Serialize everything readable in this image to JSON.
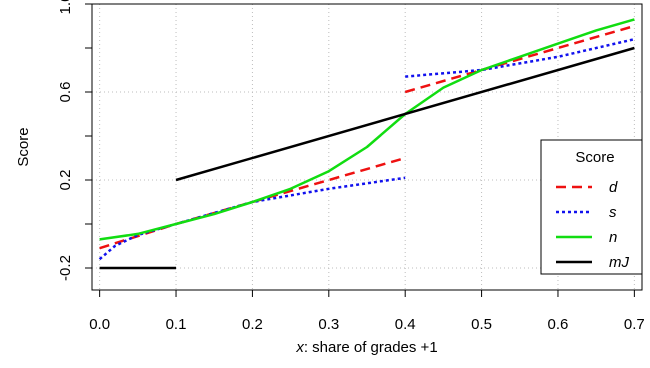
{
  "chart_data": {
    "type": "line",
    "title": "",
    "xlabel_var": "x",
    "xlabel_rest": ": share of grades +1",
    "ylabel": "Score",
    "xlim": [
      -0.01,
      0.71
    ],
    "ylim": [
      -0.3,
      1.0
    ],
    "x_ticks": [
      0.0,
      0.1,
      0.2,
      0.3,
      0.4,
      0.5,
      0.6,
      0.7
    ],
    "x_tick_labels": [
      "0.0",
      "0.1",
      "0.2",
      "0.3",
      "0.4",
      "0.5",
      "0.6",
      "0.7"
    ],
    "x_gridlines": [
      0.0,
      0.1,
      0.2,
      0.3,
      0.4,
      0.5,
      0.6,
      0.7
    ],
    "y_ticks": [
      -0.2,
      0.0,
      0.2,
      0.4,
      0.6,
      0.8,
      1.0
    ],
    "y_tick_labels": [
      "-0.2",
      "",
      "0.2",
      "",
      "0.6",
      "",
      "1.0"
    ],
    "y_gridlines": [
      -0.2,
      0.2,
      0.6,
      1.0
    ],
    "grid": true,
    "legend": {
      "title": "Score",
      "position": "bottom-right",
      "entries": [
        {
          "label": "d",
          "color": "#ee1111",
          "dash": "dashed"
        },
        {
          "label": "s",
          "color": "#1111ee",
          "dash": "dotted"
        },
        {
          "label": "n",
          "color": "#11dd11",
          "dash": "solid"
        },
        {
          "label": "mJ",
          "color": "#000000",
          "dash": "solid"
        }
      ]
    },
    "series": [
      {
        "name": "d",
        "color": "#ee1111",
        "dash": "dashed",
        "segments": [
          [
            [
              0.0,
              -0.11
            ],
            [
              0.1,
              0.0
            ],
            [
              0.2,
              0.1
            ],
            [
              0.3,
              0.2
            ],
            [
              0.4,
              0.3
            ]
          ],
          [
            [
              0.4,
              0.6
            ],
            [
              0.5,
              0.7
            ],
            [
              0.6,
              0.8
            ],
            [
              0.7,
              0.9
            ]
          ]
        ]
      },
      {
        "name": "s",
        "color": "#1111ee",
        "dash": "dotted",
        "segments": [
          [
            [
              0.0,
              -0.16
            ],
            [
              0.02,
              -0.1
            ],
            [
              0.05,
              -0.05
            ],
            [
              0.1,
              0.0
            ],
            [
              0.2,
              0.1
            ],
            [
              0.3,
              0.16
            ],
            [
              0.4,
              0.21
            ]
          ],
          [
            [
              0.4,
              0.67
            ],
            [
              0.5,
              0.7
            ],
            [
              0.6,
              0.76
            ],
            [
              0.7,
              0.84
            ]
          ]
        ]
      },
      {
        "name": "n",
        "color": "#11dd11",
        "dash": "solid",
        "segments": [
          [
            [
              0.0,
              -0.07
            ],
            [
              0.05,
              -0.045
            ],
            [
              0.1,
              0.0
            ],
            [
              0.15,
              0.045
            ],
            [
              0.2,
              0.1
            ],
            [
              0.25,
              0.16
            ],
            [
              0.3,
              0.24
            ],
            [
              0.35,
              0.35
            ],
            [
              0.4,
              0.5
            ],
            [
              0.45,
              0.62
            ],
            [
              0.5,
              0.7
            ],
            [
              0.55,
              0.76
            ],
            [
              0.6,
              0.82
            ],
            [
              0.65,
              0.88
            ],
            [
              0.7,
              0.93
            ]
          ]
        ]
      },
      {
        "name": "mJ",
        "color": "#000000",
        "dash": "solid",
        "segments": [
          [
            [
              0.0,
              -0.2
            ],
            [
              0.1,
              -0.2
            ]
          ],
          [
            [
              0.1,
              0.2
            ],
            [
              0.7,
              0.8
            ]
          ]
        ]
      }
    ]
  }
}
